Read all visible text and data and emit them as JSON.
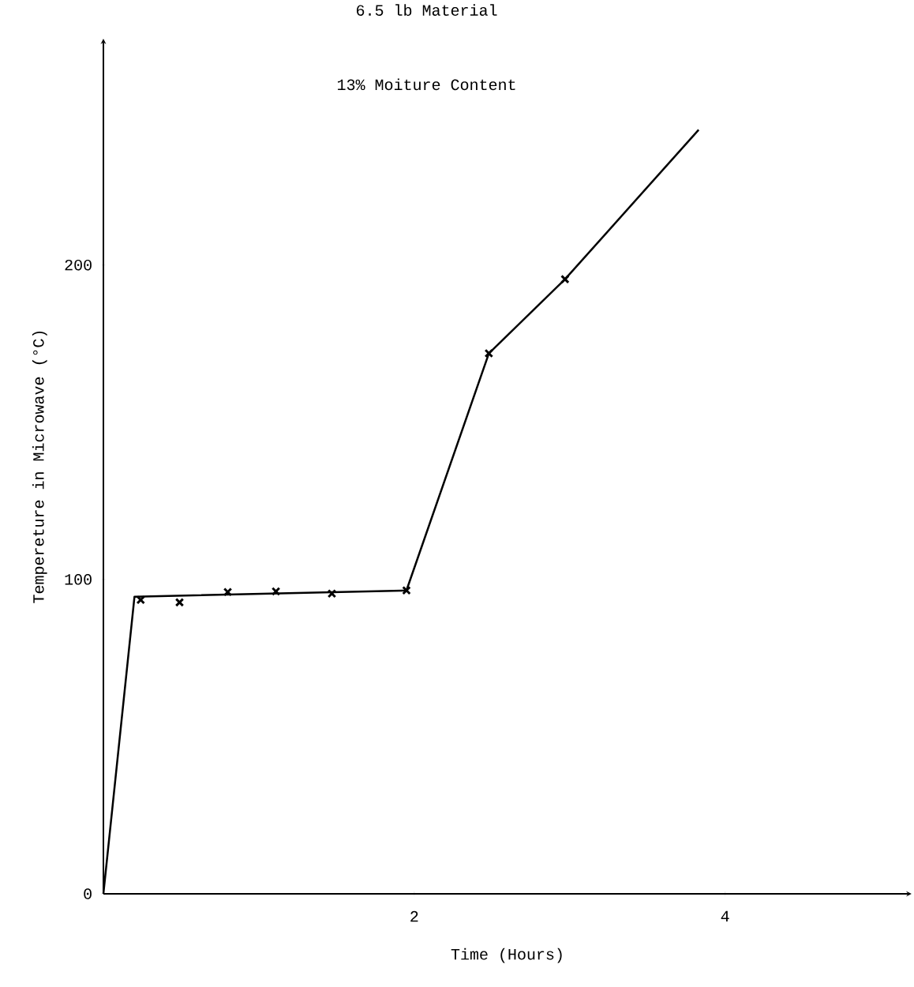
{
  "chart_data": {
    "type": "line",
    "title": "6.5 lb Material",
    "subtitle": "13% Moiture Content",
    "xlabel": "Time  (Hours)",
    "ylabel": "Tempereture in Microwave (°C)",
    "xlim": [
      0,
      5.2
    ],
    "ylim": [
      0,
      272
    ],
    "xticks": [
      2,
      4
    ],
    "yticks": [
      0,
      100,
      200
    ],
    "series": [
      {
        "color": "#000000",
        "marker": "none",
        "x": [
          0,
          0.2,
          1.95,
          2.48,
          2.97,
          3.83
        ],
        "values": [
          0,
          94.5,
          96.5,
          171.9,
          195.5,
          243
        ]
      },
      {
        "type": "scatter",
        "color": "#000000",
        "marker": "cross",
        "x": [
          0.24,
          0.49,
          0.8,
          1.11,
          1.47,
          1.95,
          2.48,
          2.97
        ],
        "values": [
          93.5,
          92.7,
          96,
          96.2,
          95.5,
          96.5,
          171.9,
          195.5
        ]
      }
    ]
  }
}
